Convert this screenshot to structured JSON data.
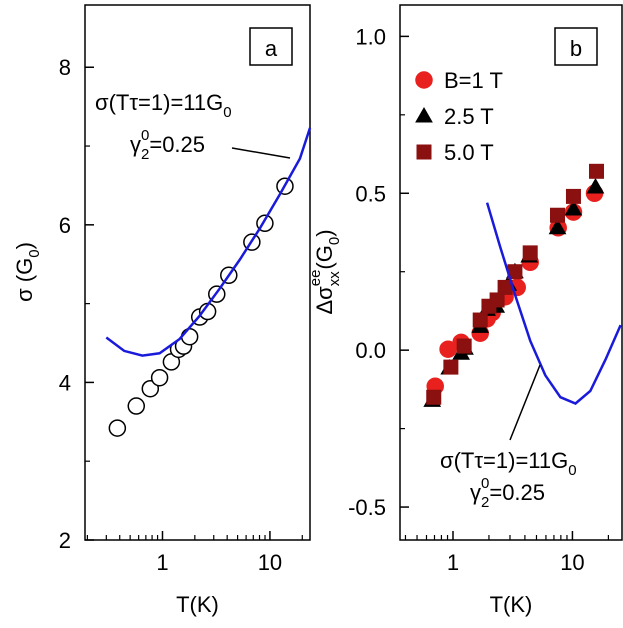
{
  "chart_data": [
    {
      "type": "scatter",
      "panel_label": "a",
      "xlabel": "T(K)",
      "ylabel": [
        "σ (G",
        "0",
        ")"
      ],
      "xscale": "log",
      "xlim": [
        0.19,
        23.6
      ],
      "xticks": [
        1,
        10
      ],
      "xminorticks": [
        0.2,
        0.3,
        0.4,
        0.5,
        0.6,
        0.7,
        0.8,
        0.9,
        2,
        3,
        4,
        5,
        6,
        7,
        8,
        9,
        20
      ],
      "ylim": [
        2,
        8.79
      ],
      "yticks": [
        2,
        4,
        6,
        8
      ],
      "yminorticks": [
        3,
        5,
        7
      ],
      "annotations": [
        [
          "σ(Tτ=1)=11G",
          "0"
        ],
        [
          "γ",
          "2",
          "0",
          "=0.25"
        ]
      ],
      "series": [
        {
          "kind": "marker",
          "marker": "circle",
          "color": "#000000",
          "filled": false,
          "x": [
            0.38,
            0.57,
            0.77,
            0.94,
            1.21,
            1.41,
            1.57,
            1.79,
            2.22,
            2.63,
            3.2,
            4.14,
            6.79,
            8.98,
            13.8
          ],
          "values": [
            3.42,
            3.7,
            3.92,
            4.06,
            4.26,
            4.42,
            4.46,
            4.58,
            4.83,
            4.9,
            5.12,
            5.36,
            5.78,
            6.02,
            6.49
          ]
        },
        {
          "kind": "line",
          "color": "#1a1adb",
          "x": [
            0.3,
            0.44,
            0.65,
            0.94,
            1.44,
            2.2,
            3.4,
            5.25,
            8.1,
            12.4,
            19.0,
            23.6
          ],
          "values": [
            4.57,
            4.4,
            4.34,
            4.37,
            4.55,
            4.84,
            5.19,
            5.56,
            5.96,
            6.39,
            6.84,
            7.23
          ]
        }
      ]
    },
    {
      "type": "scatter",
      "panel_label": "b",
      "xlabel": "T(K)",
      "ylabel": [
        "Δσ",
        "xx",
        "ee",
        "(G",
        "0",
        ")"
      ],
      "xscale": "log",
      "xlim": [
        0.36,
        26
      ],
      "xticks": [
        1,
        10
      ],
      "xminorticks": [
        0.4,
        0.5,
        0.6,
        0.7,
        0.8,
        0.9,
        2,
        3,
        4,
        5,
        6,
        7,
        8,
        9,
        20
      ],
      "ylim": [
        -0.605,
        1.1
      ],
      "yticks": [
        {
          "value": -0.5,
          "label": "-0.5"
        },
        {
          "value": 0,
          "label": "0.0"
        },
        {
          "value": 0.5,
          "label": "0.5"
        },
        {
          "value": 1,
          "label": "1.0"
        }
      ],
      "yminorticks": [
        -0.25,
        0.25,
        0.75
      ],
      "annotations": [
        [
          "σ(Tτ=1)=11G",
          "0"
        ],
        [
          "γ",
          "2",
          "0",
          "=0.25"
        ]
      ],
      "series": [
        {
          "kind": "marker",
          "marker": "circle",
          "name": "B=1 T",
          "color": "#e8201e",
          "filled": true,
          "x": [
            0.71,
            0.91,
            1.17,
            1.69,
            1.93,
            2.13,
            2.73,
            3.45,
            4.43,
            7.6,
            10.2,
            15.3
          ],
          "values": [
            -0.115,
            0.003,
            0.025,
            0.054,
            0.1,
            0.12,
            0.17,
            0.2,
            0.28,
            0.39,
            0.44,
            0.5
          ]
        },
        {
          "kind": "marker",
          "marker": "triangle",
          "name": "2.5 T",
          "color": "#000000",
          "filled": true,
          "x": [
            0.67,
            0.93,
            1.17,
            1.26,
            1.69,
            1.93,
            2.3,
            2.9,
            3.3,
            4.35,
            7.5,
            10.2,
            15.6
          ],
          "values": [
            -0.16,
            -0.057,
            -0.01,
            0.006,
            0.076,
            0.13,
            0.14,
            0.21,
            0.25,
            0.3,
            0.39,
            0.45,
            0.52
          ]
        },
        {
          "kind": "marker",
          "marker": "square",
          "name": "5.0 T",
          "color": "#8b1010",
          "filled": true,
          "x": [
            0.69,
            0.96,
            1.24,
            1.69,
            2.0,
            2.34,
            2.73,
            3.3,
            4.43,
            7.5,
            10.2,
            15.9
          ],
          "values": [
            -0.15,
            -0.054,
            0.013,
            0.096,
            0.14,
            0.16,
            0.2,
            0.25,
            0.31,
            0.43,
            0.49,
            0.57
          ]
        },
        {
          "kind": "line",
          "color": "#1a1adb",
          "x": [
            1.93,
            2.48,
            3.32,
            4.43,
            5.93,
            7.93,
            10.6,
            14.1,
            18.9,
            25.3
          ],
          "values": [
            0.47,
            0.33,
            0.175,
            0.03,
            -0.08,
            -0.15,
            -0.17,
            -0.13,
            -0.03,
            0.08
          ]
        }
      ]
    }
  ]
}
